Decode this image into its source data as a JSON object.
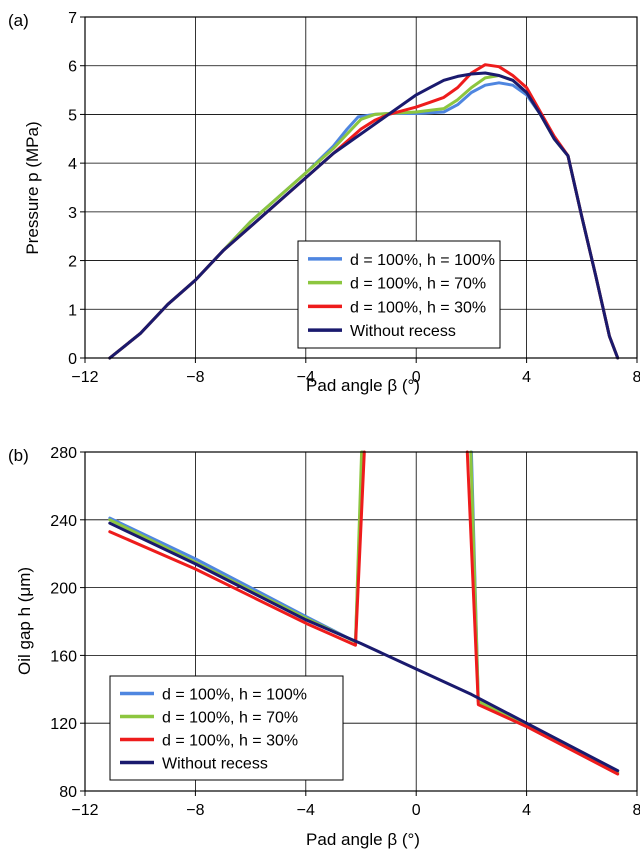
{
  "chart_data": [
    {
      "type": "line",
      "panel_label": "(a)",
      "xlabel": "Pad angle β (°)",
      "ylabel": "Pressure p (MPa)",
      "xlim": [
        -12,
        8
      ],
      "ylim": [
        0,
        7
      ],
      "x_ticks": [
        "−12",
        "−8",
        "−4",
        "0",
        "4",
        "8"
      ],
      "y_ticks": [
        "0",
        "1",
        "2",
        "3",
        "4",
        "5",
        "6",
        "7"
      ],
      "grid": true,
      "legend_position": "lower-right",
      "series": [
        {
          "name": "d = 100%, h = 100%",
          "color": "#4f86e0",
          "x": [
            -11.1,
            -10,
            -9,
            -8,
            -7,
            -6,
            -5,
            -4,
            -3,
            -2.5,
            -2.1,
            -1.5,
            -1,
            0,
            1,
            1.5,
            2,
            2.5,
            3,
            3.5,
            4,
            4.5,
            5,
            5.5,
            6,
            6.5,
            7,
            7.3
          ],
          "y": [
            0,
            0.5,
            1.1,
            1.6,
            2.2,
            2.8,
            3.3,
            3.8,
            4.35,
            4.7,
            4.95,
            5.0,
            5.02,
            5.02,
            5.05,
            5.2,
            5.45,
            5.6,
            5.65,
            5.6,
            5.4,
            5.0,
            4.5,
            4.15,
            2.9,
            1.7,
            0.45,
            0
          ]
        },
        {
          "name": "d = 100%, h = 70%",
          "color": "#8cc63f",
          "x": [
            -11.1,
            -10,
            -9,
            -8,
            -7,
            -6,
            -5,
            -4,
            -3,
            -2.5,
            -2,
            -1.5,
            -1,
            0,
            1,
            1.5,
            2,
            2.5,
            3,
            3.5,
            4,
            4.5,
            5,
            5.5,
            6,
            6.5,
            7,
            7.3
          ],
          "y": [
            0,
            0.5,
            1.1,
            1.6,
            2.2,
            2.8,
            3.3,
            3.8,
            4.3,
            4.6,
            4.9,
            5.0,
            5.02,
            5.05,
            5.12,
            5.3,
            5.55,
            5.75,
            5.8,
            5.7,
            5.45,
            5.0,
            4.5,
            4.15,
            2.9,
            1.7,
            0.45,
            0
          ]
        },
        {
          "name": "d = 100%, h = 30%",
          "color": "#ee1c1c",
          "x": [
            -11.1,
            -10,
            -9,
            -8,
            -7,
            -6,
            -5,
            -4,
            -3,
            -2,
            -1.5,
            -1,
            0,
            0.5,
            1,
            1.5,
            2,
            2.5,
            3,
            3.5,
            4,
            4.5,
            5,
            5.5,
            6,
            6.5,
            7,
            7.3
          ],
          "y": [
            0,
            0.5,
            1.1,
            1.6,
            2.2,
            2.7,
            3.2,
            3.7,
            4.2,
            4.7,
            4.88,
            5.0,
            5.15,
            5.25,
            5.35,
            5.55,
            5.85,
            6.02,
            5.98,
            5.8,
            5.55,
            5.05,
            4.55,
            4.15,
            2.9,
            1.7,
            0.45,
            0
          ]
        },
        {
          "name": "Without recess",
          "color": "#1a1a6e",
          "x": [
            -11.1,
            -10,
            -9,
            -8,
            -7,
            -6,
            -5,
            -4,
            -3,
            -2,
            -1,
            0,
            0.5,
            1,
            1.5,
            2,
            2.5,
            3,
            3.5,
            4,
            4.5,
            5,
            5.5,
            6,
            6.5,
            7,
            7.3
          ],
          "y": [
            0,
            0.5,
            1.1,
            1.6,
            2.2,
            2.7,
            3.2,
            3.7,
            4.2,
            4.6,
            5.0,
            5.4,
            5.55,
            5.7,
            5.78,
            5.83,
            5.85,
            5.8,
            5.7,
            5.45,
            5.0,
            4.5,
            4.15,
            2.9,
            1.7,
            0.45,
            0
          ]
        }
      ]
    },
    {
      "type": "line",
      "panel_label": "(b)",
      "xlabel": "Pad angle β (°)",
      "ylabel": "Oil gap h (μm)",
      "xlim": [
        -12,
        8
      ],
      "ylim": [
        80,
        280
      ],
      "x_ticks": [
        "−12",
        "−8",
        "−4",
        "0",
        "4",
        "8"
      ],
      "y_ticks": [
        "80",
        "120",
        "160",
        "200",
        "240",
        "280"
      ],
      "grid": true,
      "legend_position": "lower-left",
      "series": [
        {
          "name": "d = 100%, h = 100%",
          "color": "#4f86e0",
          "x": [
            -11.1,
            -8,
            -4,
            -2.2,
            -1.95,
            null,
            2.0,
            2.25,
            4,
            7.3
          ],
          "y": [
            241,
            217,
            183,
            168,
            280,
            null,
            280,
            133,
            119,
            92
          ]
        },
        {
          "name": "d = 100%, h = 70%",
          "color": "#8cc63f",
          "x": [
            -11.1,
            -8,
            -4,
            -2.2,
            -1.98,
            null,
            1.98,
            2.25,
            4,
            7.3
          ],
          "y": [
            240,
            215,
            182,
            168,
            280,
            null,
            280,
            133,
            119,
            91
          ]
        },
        {
          "name": "d = 100%, h = 30%",
          "color": "#ee1c1c",
          "x": [
            -11.1,
            -8,
            -4,
            -2.2,
            -1.88,
            null,
            1.85,
            2.25,
            4,
            7.3
          ],
          "y": [
            233,
            211,
            179,
            166,
            280,
            null,
            280,
            131,
            118,
            90
          ]
        },
        {
          "name": "Without recess",
          "color": "#1a1a6e",
          "x": [
            -11.1,
            -8,
            -4,
            -2,
            0,
            2,
            4,
            7.3
          ],
          "y": [
            238,
            214,
            181,
            167,
            152,
            137,
            120,
            92
          ]
        }
      ]
    }
  ]
}
